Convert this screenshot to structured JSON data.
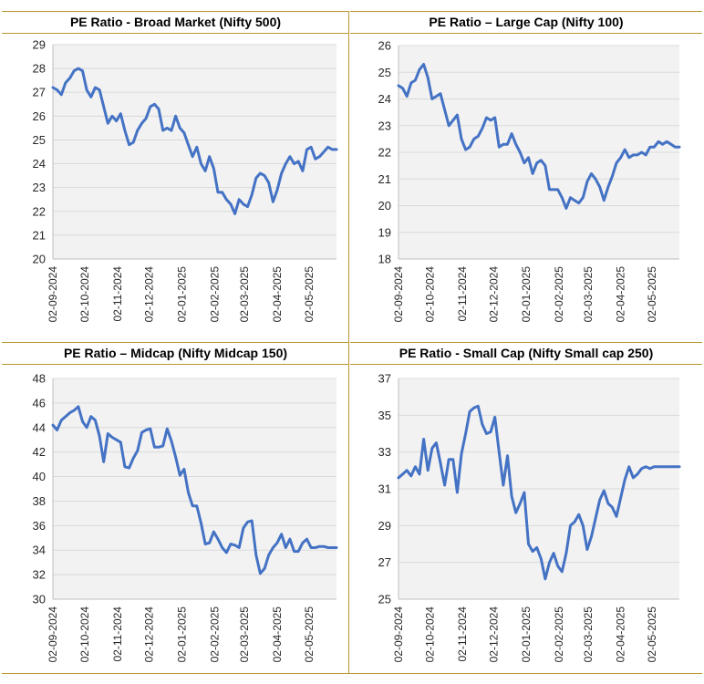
{
  "chart_data": [
    {
      "type": "line",
      "title": "PE Ratio - Broad Market (Nifty 500)",
      "ylim": [
        20,
        29
      ],
      "yticks": [
        20,
        21,
        22,
        23,
        24,
        25,
        26,
        27,
        28,
        29
      ],
      "xticks": [
        "02-09-2024",
        "02-10-2024",
        "02-11-2024",
        "02-12-2024",
        "02-01-2025",
        "02-02-2025",
        "02-03-2025",
        "02-04-2025",
        "02-05-2025"
      ],
      "color": "#4472c4",
      "grid": true,
      "x": [
        "2024-09-02",
        "2024-09-06",
        "2024-09-10",
        "2024-09-14",
        "2024-09-18",
        "2024-09-22",
        "2024-09-26",
        "2024-09-30",
        "2024-10-04",
        "2024-10-08",
        "2024-10-12",
        "2024-10-16",
        "2024-10-20",
        "2024-10-24",
        "2024-10-28",
        "2024-11-01",
        "2024-11-05",
        "2024-11-09",
        "2024-11-13",
        "2024-11-17",
        "2024-11-21",
        "2024-11-25",
        "2024-11-29",
        "2024-12-03",
        "2024-12-07",
        "2024-12-11",
        "2024-12-15",
        "2024-12-19",
        "2024-12-23",
        "2024-12-27",
        "2024-12-31",
        "2025-01-04",
        "2025-01-08",
        "2025-01-12",
        "2025-01-16",
        "2025-01-20",
        "2025-01-24",
        "2025-01-28",
        "2025-02-01",
        "2025-02-05",
        "2025-02-09",
        "2025-02-13",
        "2025-02-17",
        "2025-02-21",
        "2025-02-25",
        "2025-03-01",
        "2025-03-05",
        "2025-03-09",
        "2025-03-13",
        "2025-03-17",
        "2025-03-21",
        "2025-03-25",
        "2025-03-29",
        "2025-04-02",
        "2025-04-06",
        "2025-04-10",
        "2025-04-14",
        "2025-04-18",
        "2025-04-22",
        "2025-04-26",
        "2025-04-30",
        "2025-05-04",
        "2025-05-08",
        "2025-05-12",
        "2025-05-16",
        "2025-05-20",
        "2025-05-24",
        "2025-05-28"
      ],
      "values": [
        27.2,
        27.1,
        26.9,
        27.4,
        27.6,
        27.9,
        28.0,
        27.9,
        27.1,
        26.8,
        27.2,
        27.1,
        26.4,
        25.7,
        26.0,
        25.8,
        26.1,
        25.4,
        24.8,
        24.9,
        25.4,
        25.7,
        25.9,
        26.4,
        26.5,
        26.3,
        25.4,
        25.5,
        25.4,
        26.0,
        25.5,
        25.3,
        24.8,
        24.3,
        24.7,
        24.0,
        23.7,
        24.3,
        23.8,
        22.8,
        22.8,
        22.5,
        22.3,
        21.9,
        22.5,
        22.3,
        22.2,
        22.7,
        23.4,
        23.6,
        23.5,
        23.2,
        22.4,
        22.9,
        23.6,
        24.0,
        24.3,
        24.0,
        24.1,
        23.7,
        24.6,
        24.7,
        24.2,
        24.3,
        24.5,
        24.7,
        24.6,
        24.6
      ]
    },
    {
      "type": "line",
      "title": "PE Ratio – Large Cap (Nifty 100)",
      "ylim": [
        18,
        26
      ],
      "yticks": [
        18,
        19,
        20,
        21,
        22,
        23,
        24,
        25,
        26
      ],
      "xticks": [
        "02-09-2024",
        "02-10-2024",
        "02-11-2024",
        "02-12-2024",
        "02-01-2025",
        "02-02-2025",
        "02-03-2025",
        "02-04-2025",
        "02-05-2025"
      ],
      "color": "#4472c4",
      "grid": true,
      "x": [
        "2024-09-02",
        "2024-09-06",
        "2024-09-10",
        "2024-09-14",
        "2024-09-18",
        "2024-09-22",
        "2024-09-26",
        "2024-09-30",
        "2024-10-04",
        "2024-10-08",
        "2024-10-12",
        "2024-10-16",
        "2024-10-20",
        "2024-10-24",
        "2024-10-28",
        "2024-11-01",
        "2024-11-05",
        "2024-11-09",
        "2024-11-13",
        "2024-11-17",
        "2024-11-21",
        "2024-11-25",
        "2024-11-29",
        "2024-12-03",
        "2024-12-07",
        "2024-12-11",
        "2024-12-15",
        "2024-12-19",
        "2024-12-23",
        "2024-12-27",
        "2024-12-31",
        "2025-01-04",
        "2025-01-08",
        "2025-01-12",
        "2025-01-16",
        "2025-01-20",
        "2025-01-24",
        "2025-01-28",
        "2025-02-01",
        "2025-02-05",
        "2025-02-09",
        "2025-02-13",
        "2025-02-17",
        "2025-02-21",
        "2025-02-25",
        "2025-03-01",
        "2025-03-05",
        "2025-03-09",
        "2025-03-13",
        "2025-03-17",
        "2025-03-21",
        "2025-03-25",
        "2025-03-29",
        "2025-04-02",
        "2025-04-06",
        "2025-04-10",
        "2025-04-14",
        "2025-04-18",
        "2025-04-22",
        "2025-04-26",
        "2025-04-30",
        "2025-05-04",
        "2025-05-08",
        "2025-05-12",
        "2025-05-16",
        "2025-05-20",
        "2025-05-24",
        "2025-05-28"
      ],
      "values": [
        24.5,
        24.4,
        24.1,
        24.6,
        24.7,
        25.1,
        25.3,
        24.8,
        24.0,
        24.1,
        24.2,
        23.6,
        23.0,
        23.2,
        23.4,
        22.5,
        22.1,
        22.2,
        22.5,
        22.6,
        22.9,
        23.3,
        23.2,
        23.3,
        22.2,
        22.3,
        22.3,
        22.7,
        22.3,
        22.0,
        21.6,
        21.8,
        21.2,
        21.6,
        21.7,
        21.5,
        20.6,
        20.6,
        20.6,
        20.3,
        19.9,
        20.3,
        20.2,
        20.1,
        20.3,
        20.9,
        21.2,
        21.0,
        20.7,
        20.2,
        20.7,
        21.1,
        21.6,
        21.8,
        22.1,
        21.8,
        21.9,
        21.9,
        22.0,
        21.9,
        22.2,
        22.2,
        22.4,
        22.3,
        22.4,
        22.3,
        22.2,
        22.2
      ]
    },
    {
      "type": "line",
      "title": "PE Ratio – Midcap (Nifty Midcap 150)",
      "ylim": [
        30,
        48
      ],
      "yticks": [
        30,
        32,
        34,
        36,
        38,
        40,
        42,
        44,
        46,
        48
      ],
      "xticks": [
        "02-09-2024",
        "02-10-2024",
        "02-11-2024",
        "02-12-2024",
        "02-01-2025",
        "02-02-2025",
        "02-03-2025",
        "02-04-2025",
        "02-05-2025"
      ],
      "color": "#4472c4",
      "grid": true,
      "x": [
        "2024-09-02",
        "2024-09-06",
        "2024-09-10",
        "2024-09-14",
        "2024-09-18",
        "2024-09-22",
        "2024-09-26",
        "2024-09-30",
        "2024-10-04",
        "2024-10-08",
        "2024-10-12",
        "2024-10-16",
        "2024-10-20",
        "2024-10-24",
        "2024-10-28",
        "2024-11-01",
        "2024-11-05",
        "2024-11-09",
        "2024-11-13",
        "2024-11-17",
        "2024-11-21",
        "2024-11-25",
        "2024-11-29",
        "2024-12-03",
        "2024-12-07",
        "2024-12-11",
        "2024-12-15",
        "2024-12-19",
        "2024-12-23",
        "2024-12-27",
        "2024-12-31",
        "2025-01-04",
        "2025-01-08",
        "2025-01-12",
        "2025-01-16",
        "2025-01-20",
        "2025-01-24",
        "2025-01-28",
        "2025-02-01",
        "2025-02-05",
        "2025-02-09",
        "2025-02-13",
        "2025-02-17",
        "2025-02-21",
        "2025-02-25",
        "2025-03-01",
        "2025-03-05",
        "2025-03-09",
        "2025-03-13",
        "2025-03-17",
        "2025-03-21",
        "2025-03-25",
        "2025-03-29",
        "2025-04-02",
        "2025-04-06",
        "2025-04-10",
        "2025-04-14",
        "2025-04-18",
        "2025-04-22",
        "2025-04-26",
        "2025-04-30",
        "2025-05-04",
        "2025-05-08",
        "2025-05-12",
        "2025-05-16",
        "2025-05-20",
        "2025-05-24",
        "2025-05-28"
      ],
      "values": [
        44.2,
        43.8,
        44.6,
        44.9,
        45.2,
        45.4,
        45.7,
        44.5,
        44.0,
        44.9,
        44.6,
        43.3,
        41.2,
        43.5,
        43.2,
        43.0,
        42.8,
        40.8,
        40.7,
        41.5,
        42.1,
        43.6,
        43.8,
        43.9,
        42.4,
        42.4,
        42.5,
        43.9,
        42.9,
        41.6,
        40.1,
        40.6,
        38.7,
        37.6,
        37.6,
        36.2,
        34.5,
        34.6,
        35.5,
        34.9,
        34.2,
        33.8,
        34.5,
        34.4,
        34.2,
        35.8,
        36.3,
        36.4,
        33.6,
        32.1,
        32.5,
        33.6,
        34.2,
        34.6,
        35.3,
        34.2,
        34.9,
        33.9,
        33.9,
        34.6,
        34.9,
        34.2,
        34.2,
        34.3,
        34.3,
        34.2,
        34.2,
        34.2
      ]
    },
    {
      "type": "line",
      "title": "PE Ratio - Small Cap (Nifty Small cap 250)",
      "ylim": [
        25,
        37
      ],
      "yticks": [
        25,
        27,
        29,
        31,
        33,
        35,
        37
      ],
      "xticks": [
        "02-09-2024",
        "02-10-2024",
        "02-11-2024",
        "02-12-2024",
        "02-01-2025",
        "02-02-2025",
        "02-03-2025",
        "02-04-2025",
        "02-05-2025"
      ],
      "color": "#4472c4",
      "grid": true,
      "x": [
        "2024-09-02",
        "2024-09-06",
        "2024-09-10",
        "2024-09-14",
        "2024-09-18",
        "2024-09-22",
        "2024-09-26",
        "2024-09-30",
        "2024-10-04",
        "2024-10-08",
        "2024-10-12",
        "2024-10-16",
        "2024-10-20",
        "2024-10-24",
        "2024-10-28",
        "2024-11-01",
        "2024-11-05",
        "2024-11-09",
        "2024-11-13",
        "2024-11-17",
        "2024-11-21",
        "2024-11-25",
        "2024-11-29",
        "2024-12-03",
        "2024-12-07",
        "2024-12-11",
        "2024-12-15",
        "2024-12-19",
        "2024-12-23",
        "2024-12-27",
        "2024-12-31",
        "2025-01-04",
        "2025-01-08",
        "2025-01-12",
        "2025-01-16",
        "2025-01-20",
        "2025-01-24",
        "2025-01-28",
        "2025-02-01",
        "2025-02-05",
        "2025-02-09",
        "2025-02-13",
        "2025-02-17",
        "2025-02-21",
        "2025-02-25",
        "2025-03-01",
        "2025-03-05",
        "2025-03-09",
        "2025-03-13",
        "2025-03-17",
        "2025-03-21",
        "2025-03-25",
        "2025-03-29",
        "2025-04-02",
        "2025-04-06",
        "2025-04-10",
        "2025-04-14",
        "2025-04-18",
        "2025-04-22",
        "2025-04-26",
        "2025-04-30",
        "2025-05-04",
        "2025-05-08",
        "2025-05-12",
        "2025-05-16",
        "2025-05-20",
        "2025-05-24",
        "2025-05-28"
      ],
      "values": [
        31.6,
        31.8,
        32.0,
        31.7,
        32.2,
        31.8,
        33.7,
        32.0,
        33.2,
        33.5,
        32.4,
        31.2,
        32.6,
        32.6,
        30.8,
        32.9,
        34.0,
        35.2,
        35.4,
        35.5,
        34.5,
        34.0,
        34.1,
        34.9,
        33.0,
        31.2,
        32.8,
        30.6,
        29.7,
        30.2,
        30.8,
        28.0,
        27.6,
        27.8,
        27.2,
        26.1,
        27.0,
        27.5,
        26.8,
        26.5,
        27.5,
        29.0,
        29.2,
        29.6,
        29.0,
        27.7,
        28.4,
        29.4,
        30.4,
        30.9,
        30.2,
        30.0,
        29.5,
        30.5,
        31.5,
        32.2,
        31.6,
        31.8,
        32.1,
        32.2,
        32.1,
        32.2,
        32.2,
        32.2,
        32.2,
        32.2,
        32.2,
        32.2
      ]
    }
  ]
}
